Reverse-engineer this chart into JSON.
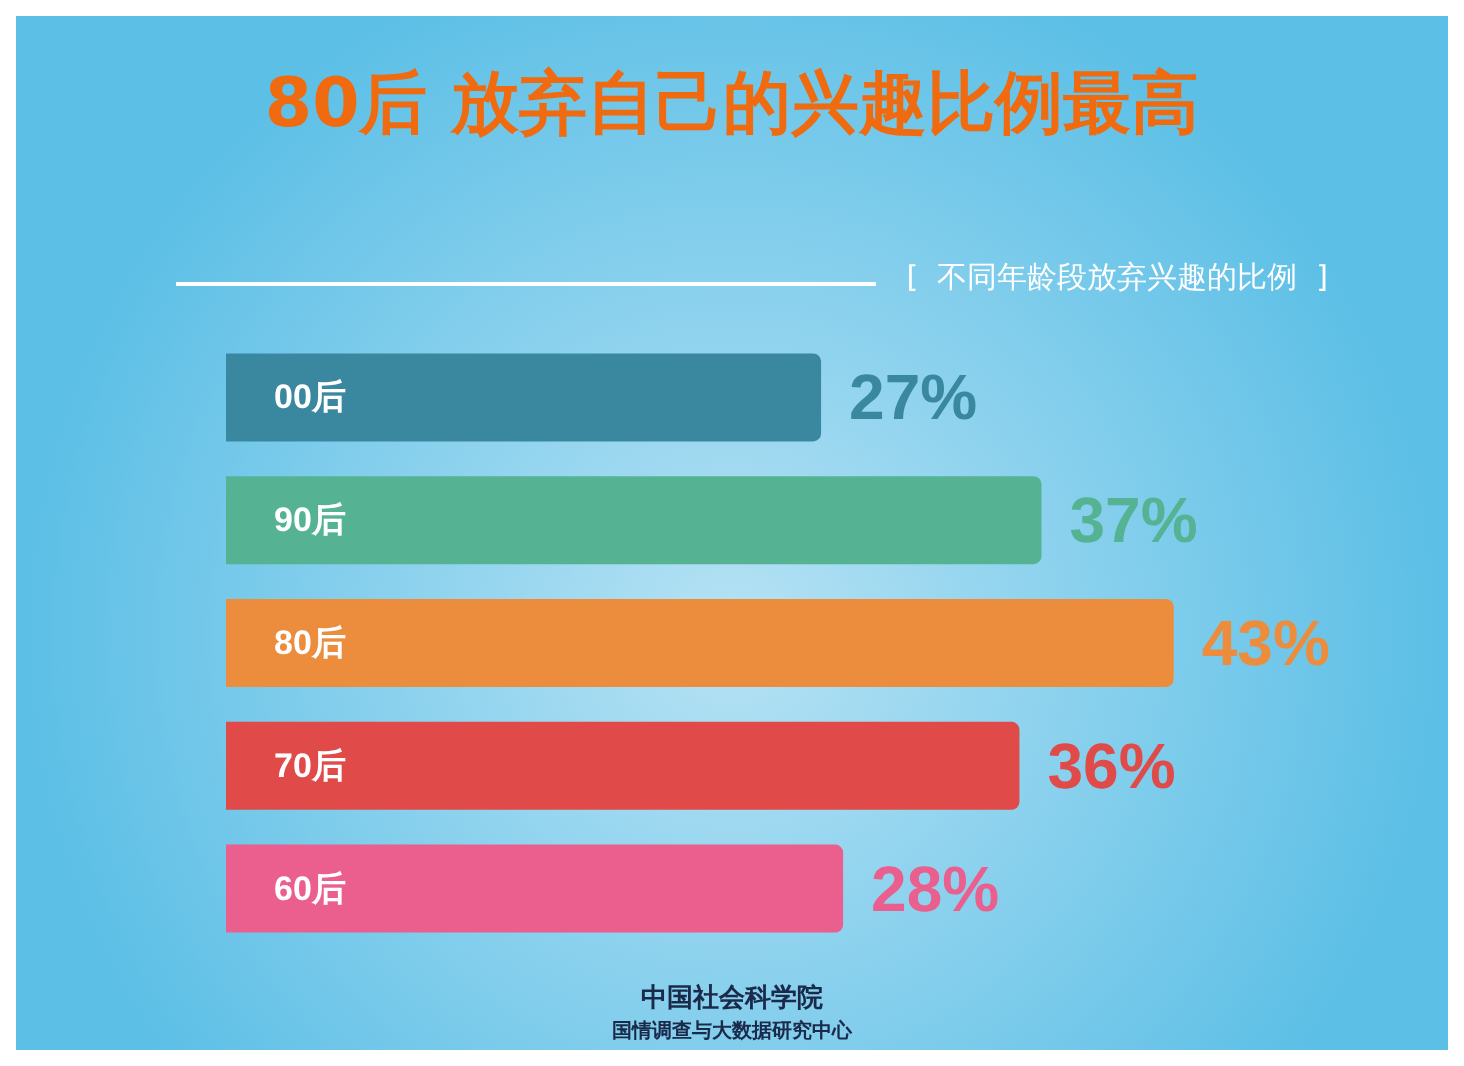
{
  "chart_data": {
    "type": "bar",
    "orientation": "horizontal",
    "title": "80后 放弃自己的兴趣比例最高",
    "subtitle": "[  不同年龄段放弃兴趣的比例  ]",
    "categories": [
      "00后",
      "90后",
      "80后",
      "70后",
      "60后"
    ],
    "values": [
      27,
      37,
      43,
      36,
      28
    ],
    "value_labels": [
      "27%",
      "37%",
      "43%",
      "36%",
      "28%"
    ],
    "colors": [
      "#3a88a0",
      "#55b393",
      "#ec8d3e",
      "#e04a48",
      "#ea5f8e"
    ],
    "annotations": [
      "中国社会科学院",
      "国情调查与大数据研究中心"
    ]
  }
}
